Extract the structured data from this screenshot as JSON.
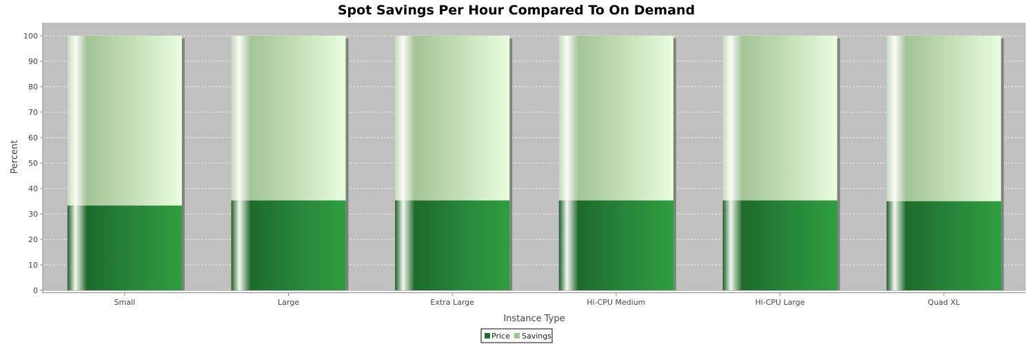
{
  "chart_data": {
    "type": "bar",
    "stacked": true,
    "title": "Spot Savings Per Hour Compared To On Demand",
    "xlabel": "Instance Type",
    "ylabel": "Percent",
    "categories": [
      "Small",
      "Large",
      "Extra Large",
      "Hi-CPU Medium",
      "Hi-CPU Large",
      "Quad XL"
    ],
    "series": [
      {
        "name": "Price",
        "values": [
          33.3,
          35.3,
          35.3,
          35.3,
          35.3,
          35.0
        ]
      },
      {
        "name": "Savings",
        "values": [
          66.7,
          64.7,
          64.7,
          64.7,
          64.7,
          65.0
        ]
      }
    ],
    "ylim": [
      0,
      100
    ],
    "yticks": [
      "0",
      "10",
      "20",
      "30",
      "40",
      "50",
      "60",
      "70",
      "80",
      "90",
      "100"
    ],
    "grid": true,
    "legend_position": "bottom-center",
    "colors": {
      "plot_background": "#c0c0c0",
      "price": "#1f7a2e",
      "price_light": "#2e9b3d",
      "savings": "#9fc494",
      "savings_light": "#e7fcdc",
      "gridline": "#eeeeee",
      "axis": "#888888"
    }
  }
}
